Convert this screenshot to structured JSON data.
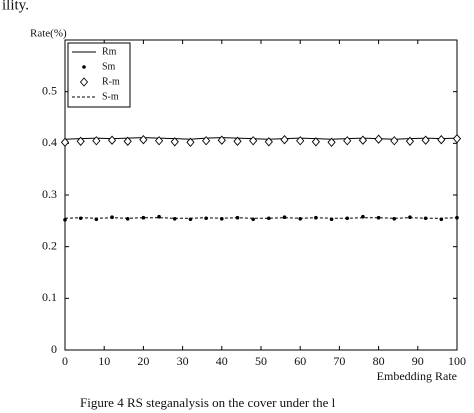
{
  "header_text": "ility.",
  "caption": "Figure 4   RS steganalysis on the cover under the l",
  "chart_data": {
    "type": "line",
    "xlabel": "Embedding Rate",
    "ylabel": "Rate(%)",
    "x": [
      0,
      4,
      8,
      12,
      16,
      20,
      24,
      28,
      32,
      36,
      40,
      44,
      48,
      52,
      56,
      60,
      64,
      68,
      72,
      76,
      80,
      84,
      88,
      92,
      96,
      100
    ],
    "xlim": [
      0,
      100
    ],
    "xticks": [
      0,
      10,
      20,
      30,
      40,
      50,
      60,
      70,
      80,
      90,
      100
    ],
    "ylim": [
      0,
      0.6
    ],
    "yticks": [
      0,
      0.1,
      0.2,
      0.3,
      0.4,
      0.5
    ],
    "grid": false,
    "legend": "upper left",
    "series": [
      {
        "name": "Rm",
        "color": "#000000",
        "line": "solid",
        "marker": "none",
        "values": [
          0.408,
          0.409,
          0.41,
          0.409,
          0.41,
          0.411,
          0.41,
          0.409,
          0.408,
          0.41,
          0.411,
          0.41,
          0.409,
          0.408,
          0.409,
          0.41,
          0.409,
          0.408,
          0.409,
          0.41,
          0.409,
          0.408,
          0.409,
          0.41,
          0.409,
          0.41
        ]
      },
      {
        "name": "Sm",
        "color": "#000000",
        "line": "none",
        "marker": "dot",
        "values": [
          0.252,
          0.255,
          0.253,
          0.257,
          0.254,
          0.256,
          0.258,
          0.254,
          0.253,
          0.255,
          0.254,
          0.256,
          0.253,
          0.255,
          0.257,
          0.254,
          0.256,
          0.253,
          0.255,
          0.258,
          0.256,
          0.254,
          0.257,
          0.255,
          0.253,
          0.256
        ]
      },
      {
        "name": "R-m",
        "color": "#000000",
        "line": "none",
        "marker": "diamond",
        "values": [
          0.402,
          0.404,
          0.405,
          0.406,
          0.404,
          0.407,
          0.405,
          0.403,
          0.402,
          0.405,
          0.406,
          0.404,
          0.405,
          0.403,
          0.407,
          0.405,
          0.403,
          0.402,
          0.405,
          0.406,
          0.408,
          0.405,
          0.404,
          0.406,
          0.407,
          0.409
        ]
      },
      {
        "name": "S-m",
        "color": "#000000",
        "line": "dashed",
        "marker": "none",
        "values": [
          0.255,
          0.256,
          0.255,
          0.256,
          0.255,
          0.256,
          0.256,
          0.255,
          0.255,
          0.256,
          0.255,
          0.256,
          0.255,
          0.255,
          0.256,
          0.255,
          0.256,
          0.255,
          0.255,
          0.256,
          0.256,
          0.255,
          0.256,
          0.255,
          0.255,
          0.256
        ]
      }
    ]
  }
}
